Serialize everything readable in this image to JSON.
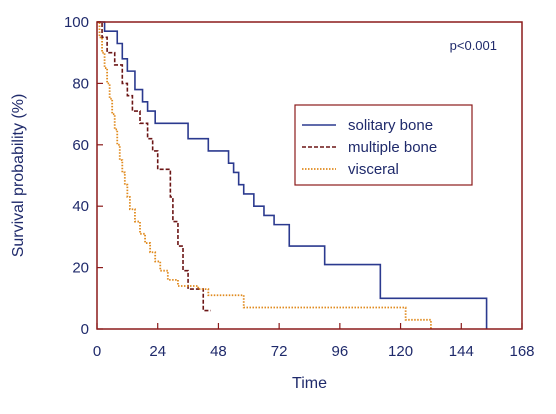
{
  "chart_data": {
    "type": "line",
    "subtype": "step",
    "xlabel": "Time",
    "ylabel": "Survival probability (%)",
    "xlim": [
      0,
      168
    ],
    "ylim": [
      0,
      100
    ],
    "xticks": [
      0,
      24,
      48,
      72,
      96,
      120,
      144,
      168
    ],
    "yticks": [
      0,
      20,
      40,
      60,
      80,
      100
    ],
    "annotation": "p<0.001",
    "legend_position": "right",
    "colors": {
      "axis": "#8b1a1a",
      "tick_text": "#1f2a6b",
      "solitary": "#2b3a8f",
      "multiple": "#6b1515",
      "visceral": "#e08a1e"
    },
    "series": [
      {
        "name": "solitary bone",
        "style": "solid",
        "points": [
          [
            0,
            100
          ],
          [
            3,
            97
          ],
          [
            8,
            93
          ],
          [
            10,
            88
          ],
          [
            12,
            84
          ],
          [
            15,
            78
          ],
          [
            18,
            74
          ],
          [
            20,
            71
          ],
          [
            23,
            67
          ],
          [
            30,
            67
          ],
          [
            36,
            62
          ],
          [
            42,
            62
          ],
          [
            44,
            58
          ],
          [
            52,
            54
          ],
          [
            54,
            51
          ],
          [
            56,
            47
          ],
          [
            58,
            44
          ],
          [
            62,
            40
          ],
          [
            66,
            37
          ],
          [
            70,
            34
          ],
          [
            76,
            27
          ],
          [
            88,
            27
          ],
          [
            90,
            21
          ],
          [
            110,
            21
          ],
          [
            112,
            10
          ],
          [
            152,
            10
          ],
          [
            154,
            0
          ]
        ]
      },
      {
        "name": "multiple bone",
        "style": "dashed",
        "points": [
          [
            0,
            100
          ],
          [
            2,
            95
          ],
          [
            4,
            90
          ],
          [
            7,
            86
          ],
          [
            10,
            80
          ],
          [
            12,
            76
          ],
          [
            14,
            71
          ],
          [
            17,
            67
          ],
          [
            20,
            62
          ],
          [
            22,
            58
          ],
          [
            24,
            52
          ],
          [
            28,
            52
          ],
          [
            29,
            43
          ],
          [
            30,
            35
          ],
          [
            32,
            27
          ],
          [
            34,
            19
          ],
          [
            36,
            13
          ],
          [
            40,
            13
          ],
          [
            42,
            6
          ],
          [
            45,
            6
          ]
        ]
      },
      {
        "name": "visceral",
        "style": "dotted",
        "points": [
          [
            0,
            100
          ],
          [
            1,
            95
          ],
          [
            2,
            90
          ],
          [
            3,
            85
          ],
          [
            4,
            80
          ],
          [
            5,
            75
          ],
          [
            6,
            70
          ],
          [
            7,
            65
          ],
          [
            8,
            60
          ],
          [
            9,
            55
          ],
          [
            10,
            51
          ],
          [
            11,
            47
          ],
          [
            12,
            43
          ],
          [
            13,
            39
          ],
          [
            15,
            35
          ],
          [
            17,
            31
          ],
          [
            19,
            28
          ],
          [
            21,
            25
          ],
          [
            23,
            22
          ],
          [
            25,
            19
          ],
          [
            28,
            16
          ],
          [
            32,
            14
          ],
          [
            40,
            13
          ],
          [
            44,
            11
          ],
          [
            56,
            11
          ],
          [
            58,
            7
          ],
          [
            120,
            7
          ],
          [
            122,
            3
          ],
          [
            132,
            3
          ],
          [
            132,
            0
          ]
        ]
      }
    ]
  }
}
